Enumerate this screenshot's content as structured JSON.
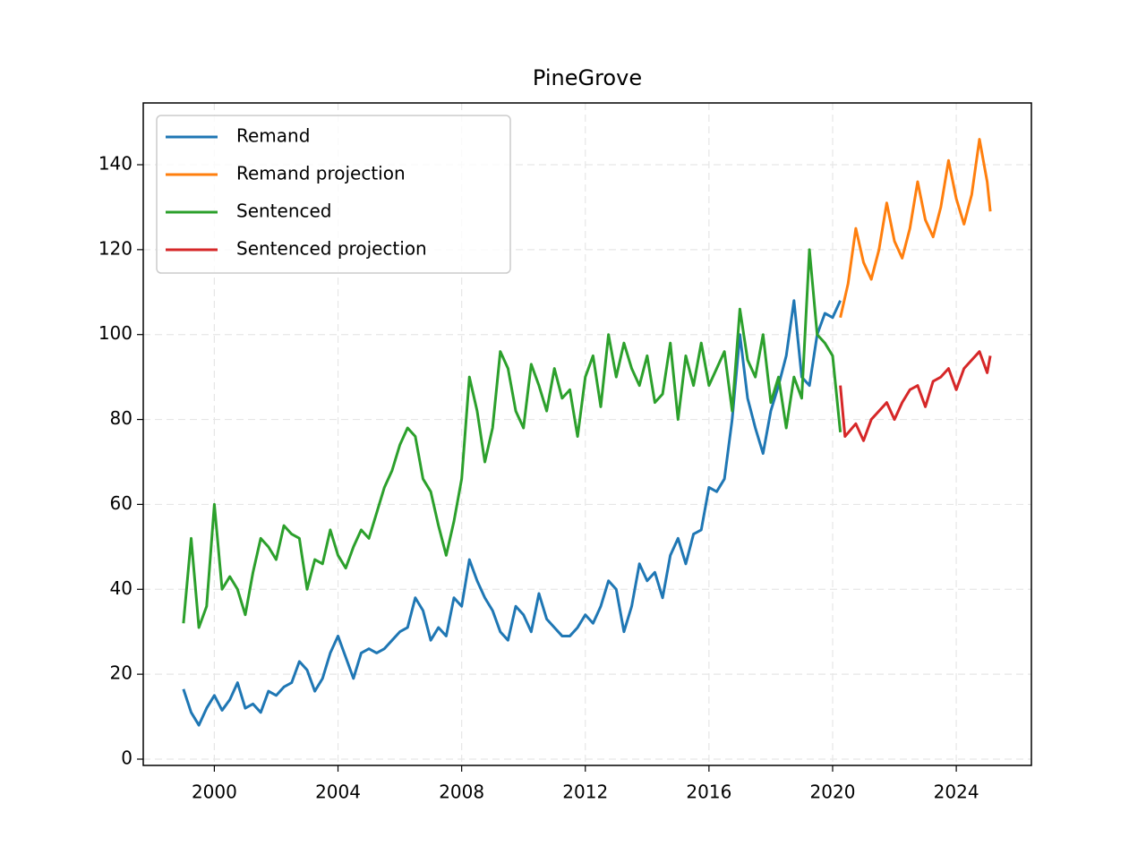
{
  "chart_data": {
    "type": "line",
    "title": "PineGrove",
    "xlim": [
      1997.7,
      2026.43
    ],
    "ylim": [
      -1.48,
      154.55
    ],
    "xticks": [
      2000,
      2004,
      2008,
      2012,
      2016,
      2020,
      2024
    ],
    "yticks": [
      0,
      20,
      40,
      60,
      80,
      100,
      120,
      140
    ],
    "grid": true,
    "legend": "upper left",
    "series": [
      {
        "name": "Remand",
        "color": "#1f77b4",
        "x": [
          1999.0,
          1999.25,
          1999.5,
          1999.75,
          2000.0,
          2000.25,
          2000.5,
          2000.75,
          2001.0,
          2001.25,
          2001.5,
          2001.75,
          2002.0,
          2002.25,
          2002.5,
          2002.75,
          2003.0,
          2003.25,
          2003.5,
          2003.75,
          2004.0,
          2004.25,
          2004.5,
          2004.75,
          2005.0,
          2005.25,
          2005.5,
          2005.75,
          2006.0,
          2006.25,
          2006.5,
          2006.75,
          2007.0,
          2007.25,
          2007.5,
          2007.75,
          2008.0,
          2008.25,
          2008.5,
          2008.75,
          2009.0,
          2009.25,
          2009.5,
          2009.75,
          2010.0,
          2010.25,
          2010.5,
          2010.75,
          2011.0,
          2011.25,
          2011.5,
          2011.75,
          2012.0,
          2012.25,
          2012.5,
          2012.75,
          2013.0,
          2013.25,
          2013.5,
          2013.75,
          2014.0,
          2014.25,
          2014.5,
          2014.75,
          2015.0,
          2015.25,
          2015.5,
          2015.75,
          2016.0,
          2016.25,
          2016.5,
          2016.75,
          2017.0,
          2017.25,
          2017.5,
          2017.75,
          2018.0,
          2018.25,
          2018.5,
          2018.75,
          2019.0,
          2019.25,
          2019.5,
          2019.75,
          2020.0,
          2020.25
        ],
        "values": [
          16.5,
          11,
          8,
          12,
          15,
          11.5,
          14,
          18,
          12,
          13,
          11,
          16,
          15,
          17,
          18,
          23,
          21,
          16,
          19,
          25,
          29,
          24,
          19,
          25,
          26,
          25,
          26,
          28,
          30,
          31,
          38,
          35,
          28,
          31,
          29,
          38,
          36,
          47,
          42,
          38,
          35,
          30,
          28,
          36,
          34,
          30,
          39,
          33,
          31,
          29,
          29,
          31,
          34,
          32,
          36,
          42,
          40,
          30,
          36,
          46,
          42,
          44,
          38,
          48,
          52,
          46,
          53,
          54,
          64,
          63,
          66,
          80,
          100,
          85,
          78,
          72,
          82,
          88,
          95,
          108,
          90,
          88,
          100,
          105,
          104,
          108
        ]
      },
      {
        "name": "Remand projection",
        "color": "#ff7f0e",
        "x": [
          2020.25,
          2020.5,
          2020.75,
          2021.0,
          2021.25,
          2021.5,
          2021.75,
          2022.0,
          2022.25,
          2022.5,
          2022.75,
          2023.0,
          2023.25,
          2023.5,
          2023.75,
          2024.0,
          2024.25,
          2024.5,
          2024.75,
          2025.0,
          2025.1
        ],
        "values": [
          104,
          112,
          125,
          117,
          113,
          120,
          131,
          122,
          118,
          125,
          136,
          127,
          123,
          130,
          141,
          132,
          126,
          133,
          146,
          136,
          129
        ]
      },
      {
        "name": "Sentenced",
        "color": "#2ca02c",
        "x": [
          1999.0,
          1999.25,
          1999.5,
          1999.75,
          2000.0,
          2000.25,
          2000.5,
          2000.75,
          2001.0,
          2001.25,
          2001.5,
          2001.75,
          2002.0,
          2002.25,
          2002.5,
          2002.75,
          2003.0,
          2003.25,
          2003.5,
          2003.75,
          2004.0,
          2004.25,
          2004.5,
          2004.75,
          2005.0,
          2005.25,
          2005.5,
          2005.75,
          2006.0,
          2006.25,
          2006.5,
          2006.75,
          2007.0,
          2007.25,
          2007.5,
          2007.75,
          2008.0,
          2008.25,
          2008.5,
          2008.75,
          2009.0,
          2009.25,
          2009.5,
          2009.75,
          2010.0,
          2010.25,
          2010.5,
          2010.75,
          2011.0,
          2011.25,
          2011.5,
          2011.75,
          2012.0,
          2012.25,
          2012.5,
          2012.75,
          2013.0,
          2013.25,
          2013.5,
          2013.75,
          2014.0,
          2014.25,
          2014.5,
          2014.75,
          2015.0,
          2015.25,
          2015.5,
          2015.75,
          2016.0,
          2016.25,
          2016.5,
          2016.75,
          2017.0,
          2017.25,
          2017.5,
          2017.75,
          2018.0,
          2018.25,
          2018.5,
          2018.75,
          2019.0,
          2019.25,
          2019.5,
          2019.75,
          2020.0,
          2020.25
        ],
        "values": [
          32,
          52,
          31,
          36,
          60,
          40,
          43,
          40,
          34,
          44,
          52,
          50,
          47,
          55,
          53,
          52,
          40,
          47,
          46,
          54,
          48,
          45,
          50,
          54,
          52,
          58,
          64,
          68,
          74,
          78,
          76,
          66,
          63,
          55,
          48,
          56,
          66,
          90,
          82,
          70,
          78,
          96,
          92,
          82,
          78,
          93,
          88,
          82,
          92,
          85,
          87,
          76,
          90,
          95,
          83,
          100,
          90,
          98,
          92,
          88,
          95,
          84,
          86,
          98,
          80,
          95,
          88,
          98,
          88,
          92,
          96,
          82,
          106,
          94,
          90,
          100,
          84,
          90,
          78,
          90,
          85,
          120,
          100,
          98,
          95,
          77
        ]
      },
      {
        "name": "Sentenced projection",
        "color": "#d62728",
        "x": [
          2020.25,
          2020.4,
          2020.75,
          2021.0,
          2021.25,
          2021.5,
          2021.75,
          2022.0,
          2022.25,
          2022.5,
          2022.75,
          2023.0,
          2023.25,
          2023.5,
          2023.75,
          2024.0,
          2024.25,
          2024.5,
          2024.75,
          2025.0,
          2025.1
        ],
        "values": [
          88,
          76,
          79,
          75,
          80,
          82,
          84,
          80,
          84,
          87,
          88,
          83,
          89,
          90,
          92,
          87,
          92,
          94,
          96,
          91,
          95
        ]
      }
    ]
  }
}
